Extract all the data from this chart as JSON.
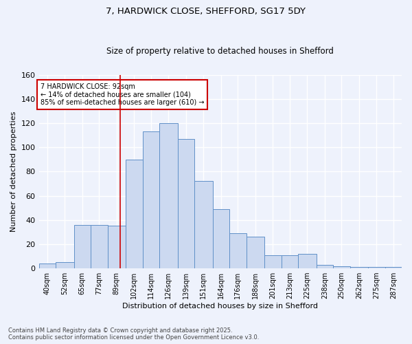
{
  "title1": "7, HARDWICK CLOSE, SHEFFORD, SG17 5DY",
  "title2": "Size of property relative to detached houses in Shefford",
  "xlabel": "Distribution of detached houses by size in Shefford",
  "ylabel": "Number of detached properties",
  "bar_labels": [
    "40sqm",
    "52sqm",
    "65sqm",
    "77sqm",
    "89sqm",
    "102sqm",
    "114sqm",
    "126sqm",
    "139sqm",
    "151sqm",
    "164sqm",
    "176sqm",
    "188sqm",
    "201sqm",
    "213sqm",
    "225sqm",
    "238sqm",
    "250sqm",
    "262sqm",
    "275sqm",
    "287sqm"
  ],
  "bar_values": [
    4,
    5,
    36,
    36,
    35,
    90,
    113,
    120,
    107,
    72,
    49,
    29,
    26,
    11,
    11,
    12,
    3,
    2,
    1,
    1,
    1
  ],
  "bar_color": "#ccd9f0",
  "bar_edge_color": "#6090c8",
  "ylim": [
    0,
    160
  ],
  "yticks": [
    0,
    20,
    40,
    60,
    80,
    100,
    120,
    140,
    160
  ],
  "vline_x": 92,
  "vline_color": "#cc0000",
  "annotation_title": "7 HARDWICK CLOSE: 92sqm",
  "annotation_line1": "← 14% of detached houses are smaller (104)",
  "annotation_line2": "85% of semi-detached houses are larger (610) →",
  "annotation_box_color": "#ffffff",
  "annotation_border_color": "#cc0000",
  "footer1": "Contains HM Land Registry data © Crown copyright and database right 2025.",
  "footer2": "Contains public sector information licensed under the Open Government Licence v3.0.",
  "bg_color": "#eef2fc",
  "grid_color": "#ffffff",
  "bin_edges": [
    34,
    46,
    59,
    71,
    83,
    96,
    108,
    120,
    133,
    145,
    158,
    170,
    182,
    195,
    207,
    219,
    232,
    244,
    256,
    269,
    281,
    293
  ]
}
